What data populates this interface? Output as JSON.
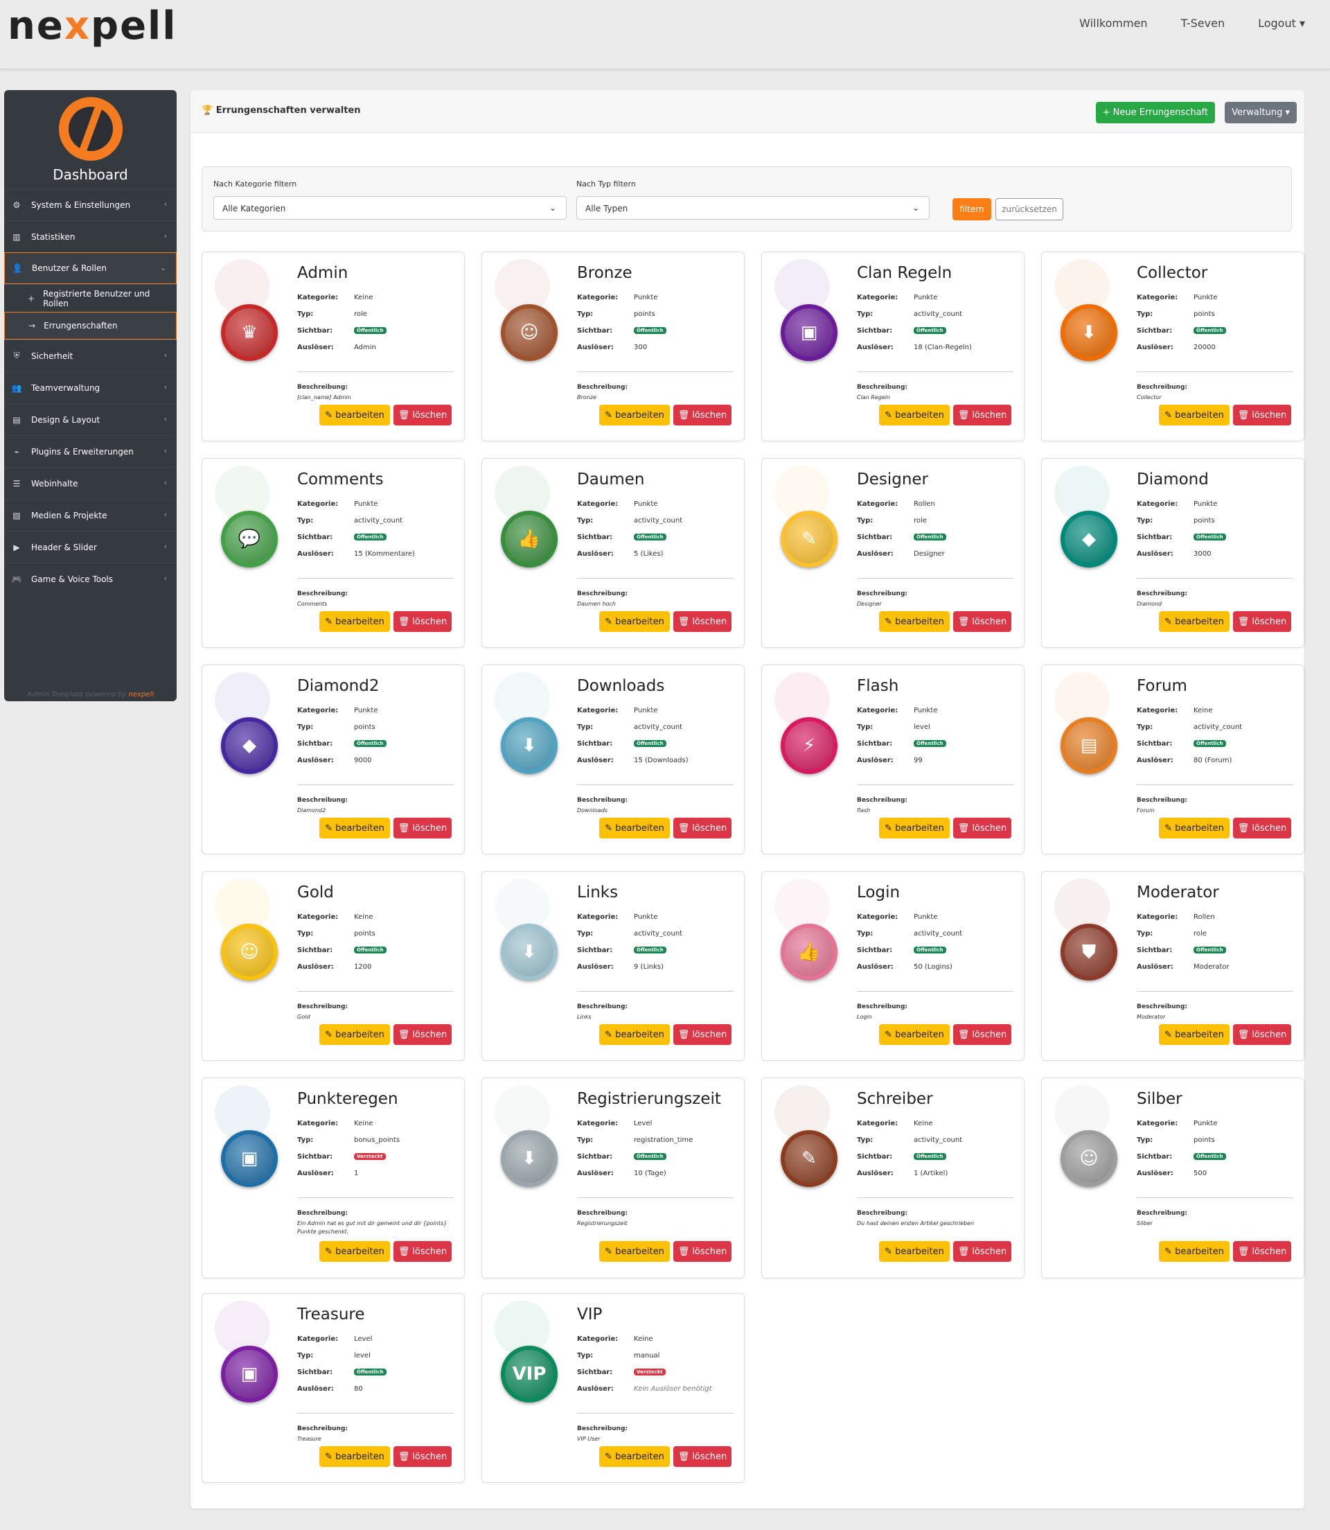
{
  "header": {
    "logo_prefix": "ne",
    "logo_x": "x",
    "logo_suffix": "pell",
    "nav": [
      "Willkommen",
      "T-Seven",
      "Logout ▾"
    ]
  },
  "sidebar": {
    "title": "Dashboard",
    "items": [
      {
        "label": "System & Einstellungen",
        "icon": "gear-icon"
      },
      {
        "label": "Statistiken",
        "icon": "bar-chart-icon"
      },
      {
        "label": "Benutzer & Rollen",
        "icon": "user-icon"
      },
      {
        "label": "Sicherheit",
        "icon": "shield-icon"
      },
      {
        "label": "Teamverwaltung",
        "icon": "people-icon"
      },
      {
        "label": "Design & Layout",
        "icon": "layout-icon"
      },
      {
        "label": "Plugins & Erweiterungen",
        "icon": "plug-icon"
      },
      {
        "label": "Webinhalte",
        "icon": "document-icon"
      },
      {
        "label": "Medien & Projekte",
        "icon": "image-icon"
      },
      {
        "label": "Header & Slider",
        "icon": "slider-icon"
      },
      {
        "label": "Game & Voice Tools",
        "icon": "gamepad-icon"
      }
    ],
    "sub_items": [
      "Registrierte Benutzer und Rollen",
      "Errungenschaften"
    ],
    "footer_text": "Admin Template powered by ",
    "footer_brand": "nexpell"
  },
  "page": {
    "title": "Errungenschaften verwalten",
    "new_button": "+ Neue Errungenschaft",
    "admin_button": "Verwaltung ▾"
  },
  "filter": {
    "category_label": "Nach Kategorie filtern",
    "category_value": "Alle Kategorien",
    "type_label": "Nach Typ filtern",
    "type_value": "Alle Typen",
    "filter_button": "filtern",
    "reset_button": "zurücksetzen"
  },
  "labels": {
    "category": "Kategorie:",
    "type": "Typ:",
    "visible": "Sichtbar:",
    "trigger": "Auslöser:",
    "description": "Beschreibung:",
    "edit": "✎ bearbeiten",
    "delete": "🗑 löschen"
  },
  "colors": {
    "accent": "#f47b20",
    "green": "#28a745",
    "edit": "#ffc107",
    "delete": "#dc3545"
  },
  "achievements": [
    {
      "name": "Admin",
      "category": "Keine",
      "type": "role",
      "visible": "Öffentlich",
      "trigger": "Admin",
      "description": "[clan_name] Admin",
      "badge_color": "#c62828",
      "glyph": "♛"
    },
    {
      "name": "Bronze",
      "category": "Punkte",
      "type": "points",
      "visible": "Öffentlich",
      "trigger": "300",
      "description": "Bronze",
      "badge_color": "#a0522d",
      "glyph": "☺"
    },
    {
      "name": "Clan Regeln",
      "category": "Punkte",
      "type": "activity_count",
      "visible": "Öffentlich",
      "trigger": "18 (Clan-Regeln)",
      "description": "Clan Regeln",
      "badge_color": "#6a1b9a",
      "glyph": "▣"
    },
    {
      "name": "Collector",
      "category": "Punkte",
      "type": "points",
      "visible": "Öffentlich",
      "trigger": "20000",
      "description": "Collector",
      "badge_color": "#ef6c00",
      "glyph": "⬇"
    },
    {
      "name": "Comments",
      "category": "Punkte",
      "type": "activity_count",
      "visible": "Öffentlich",
      "trigger": "15 (Kommentare)",
      "description": "Comments",
      "badge_color": "#43a047",
      "glyph": "💬"
    },
    {
      "name": "Daumen",
      "category": "Punkte",
      "type": "activity_count",
      "visible": "Öffentlich",
      "trigger": "5 (Likes)",
      "description": "Daumen hoch",
      "badge_color": "#388e3c",
      "glyph": "👍"
    },
    {
      "name": "Designer",
      "category": "Rollen",
      "type": "role",
      "visible": "Öffentlich",
      "trigger": "Designer",
      "description": "Designer",
      "badge_color": "#fbc02d",
      "glyph": "✎"
    },
    {
      "name": "Diamond",
      "category": "Punkte",
      "type": "points",
      "visible": "Öffentlich",
      "trigger": "3000",
      "description": "Diamond",
      "badge_color": "#00897b",
      "glyph": "◆"
    },
    {
      "name": "Diamond2",
      "category": "Punkte",
      "type": "points",
      "visible": "Öffentlich",
      "trigger": "9000",
      "description": "Diamond2",
      "badge_color": "#4527a0",
      "glyph": "◆"
    },
    {
      "name": "Downloads",
      "category": "Punkte",
      "type": "activity_count",
      "visible": "Öffentlich",
      "trigger": "15 (Downloads)",
      "description": "Downloads",
      "badge_color": "#4fa3c0",
      "glyph": "⬇"
    },
    {
      "name": "Flash",
      "category": "Punkte",
      "type": "level",
      "visible": "Öffentlich",
      "trigger": "99",
      "description": "flash",
      "badge_color": "#d81b60",
      "glyph": "⚡"
    },
    {
      "name": "Forum",
      "category": "Keine",
      "type": "activity_count",
      "visible": "Öffentlich",
      "trigger": "80 (Forum)",
      "description": "Forum",
      "badge_color": "#e67e22",
      "glyph": "▤"
    },
    {
      "name": "Gold",
      "category": "Keine",
      "type": "points",
      "visible": "Öffentlich",
      "trigger": "1200",
      "description": "Gold",
      "badge_color": "#f9c20f",
      "glyph": "☺"
    },
    {
      "name": "Links",
      "category": "Punkte",
      "type": "activity_count",
      "visible": "Öffentlich",
      "trigger": "9 (Links)",
      "description": "Links",
      "badge_color": "#9fc4cf",
      "glyph": "⬇"
    },
    {
      "name": "Login",
      "category": "Punkte",
      "type": "activity_count",
      "visible": "Öffentlich",
      "trigger": "50 (Logins)",
      "description": "Login",
      "badge_color": "#e57393",
      "glyph": "👍"
    },
    {
      "name": "Moderator",
      "category": "Rollen",
      "type": "role",
      "visible": "Öffentlich",
      "trigger": "Moderator",
      "description": "Moderator",
      "badge_color": "#8d3a2a",
      "glyph": "⛊"
    },
    {
      "name": "Punkteregen",
      "category": "Keine",
      "type": "bonus_points",
      "visible": "Versteckt",
      "trigger": "1",
      "description": "Ein Admin hat es gut mit dir gemeint und dir {points} Punkte geschenkt.",
      "badge_color": "#1e6fa8",
      "glyph": "▣"
    },
    {
      "name": "Registrierungszeit",
      "category": "Level",
      "type": "registration_time",
      "visible": "Öffentlich",
      "trigger": "10 (Tage)",
      "description": "Registrierungszeit",
      "badge_color": "#9aa6ab",
      "glyph": "⬇"
    },
    {
      "name": "Schreiber",
      "category": "Keine",
      "type": "activity_count",
      "visible": "Öffentlich",
      "trigger": "1 (Artikel)",
      "description": "Du hast deinen ersten Artikel geschrieben",
      "badge_color": "#8b3d1f",
      "glyph": "✎"
    },
    {
      "name": "Silber",
      "category": "Punkte",
      "type": "points",
      "visible": "Öffentlich",
      "trigger": "500",
      "description": "Silber",
      "badge_color": "#9e9e9e",
      "glyph": "☺"
    },
    {
      "name": "Treasure",
      "category": "Level",
      "type": "level",
      "visible": "Öffentlich",
      "trigger": "80",
      "description": "Treasure",
      "badge_color": "#7b1fa2",
      "glyph": "▣"
    },
    {
      "name": "VIP",
      "category": "Keine",
      "type": "manual",
      "visible": "Versteckt",
      "trigger": "Kein Auslöser benötigt",
      "description": "VIP User",
      "badge_color": "#0b8a5a",
      "glyph": "VIP"
    }
  ]
}
